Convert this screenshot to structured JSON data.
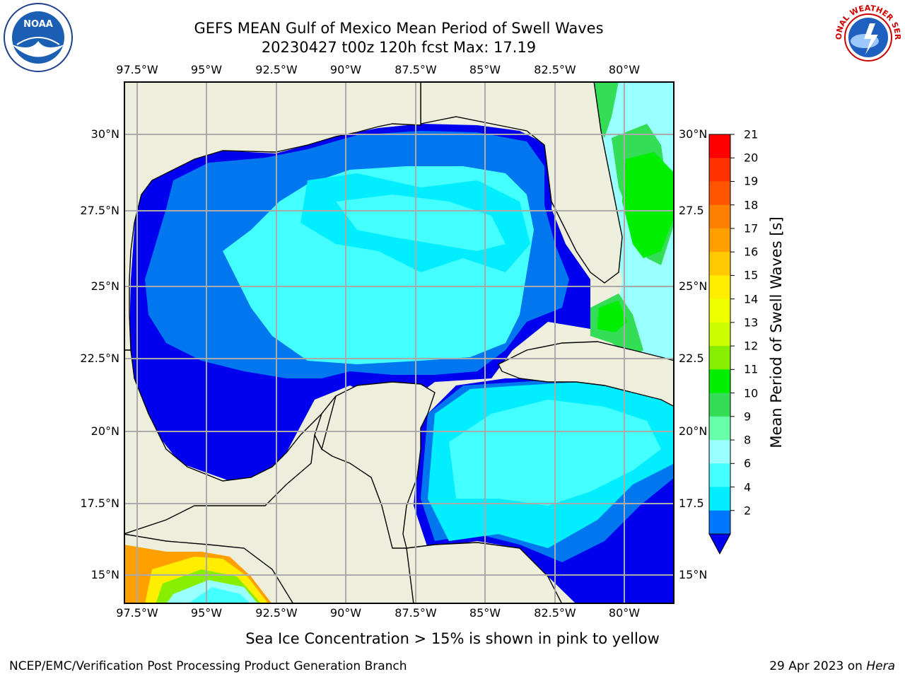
{
  "title": {
    "line1": "GEFS MEAN Gulf of Mexico Mean Period of Swell Waves",
    "line2": "20230427 t00z 120h fcst   Max: 17.19"
  },
  "logos": {
    "left": "NOAA",
    "right": "NATIONAL WEATHER SERVICE"
  },
  "lon_ticks": [
    "97.5°W",
    "95°W",
    "92.5°W",
    "90°W",
    "87.5°W",
    "85°W",
    "82.5°W",
    "80°W"
  ],
  "lat_ticks": [
    "30°N",
    "27.5°N",
    "25°N",
    "22.5°N",
    "20°N",
    "17.5°N",
    "15°N"
  ],
  "lat_ticks_right": [
    "30°N",
    "27.5",
    "25°N",
    "22.5",
    "20°N",
    "17.5",
    "15°N"
  ],
  "colorbar": {
    "label": "Mean Period of Swell Waves [s]",
    "ticks": [
      "21",
      "20",
      "19",
      "18",
      "17",
      "16",
      "15",
      "14",
      "13",
      "12",
      "11",
      "10",
      "9",
      "8",
      "6",
      "4",
      "2"
    ],
    "colors": [
      "#ff0000",
      "#ff3300",
      "#ff5500",
      "#ff8000",
      "#ffa000",
      "#ffc800",
      "#ffee00",
      "#f0ff00",
      "#ccff00",
      "#88ee00",
      "#00ee00",
      "#33dd55",
      "#66ffaa",
      "#99ffff",
      "#44ffff",
      "#00eeff",
      "#0077ff",
      "#0000ee"
    ]
  },
  "subtitle": "Sea Ice Concentration > 15% is shown in pink to yellow",
  "footer": {
    "left": "NCEP/EMC/Verification Post Processing Product Generation Branch",
    "right_date": "29 Apr 2023 on ",
    "right_host": "Hera"
  },
  "colors": {
    "land": "#eeeedd",
    "grid": "#aaaaaa",
    "deep_blue": "#0000ee",
    "blue": "#0077ee",
    "cyan": "#00eeff",
    "light_cyan": "#44ffff",
    "pale_cyan": "#99ffff",
    "green": "#00ee00"
  }
}
